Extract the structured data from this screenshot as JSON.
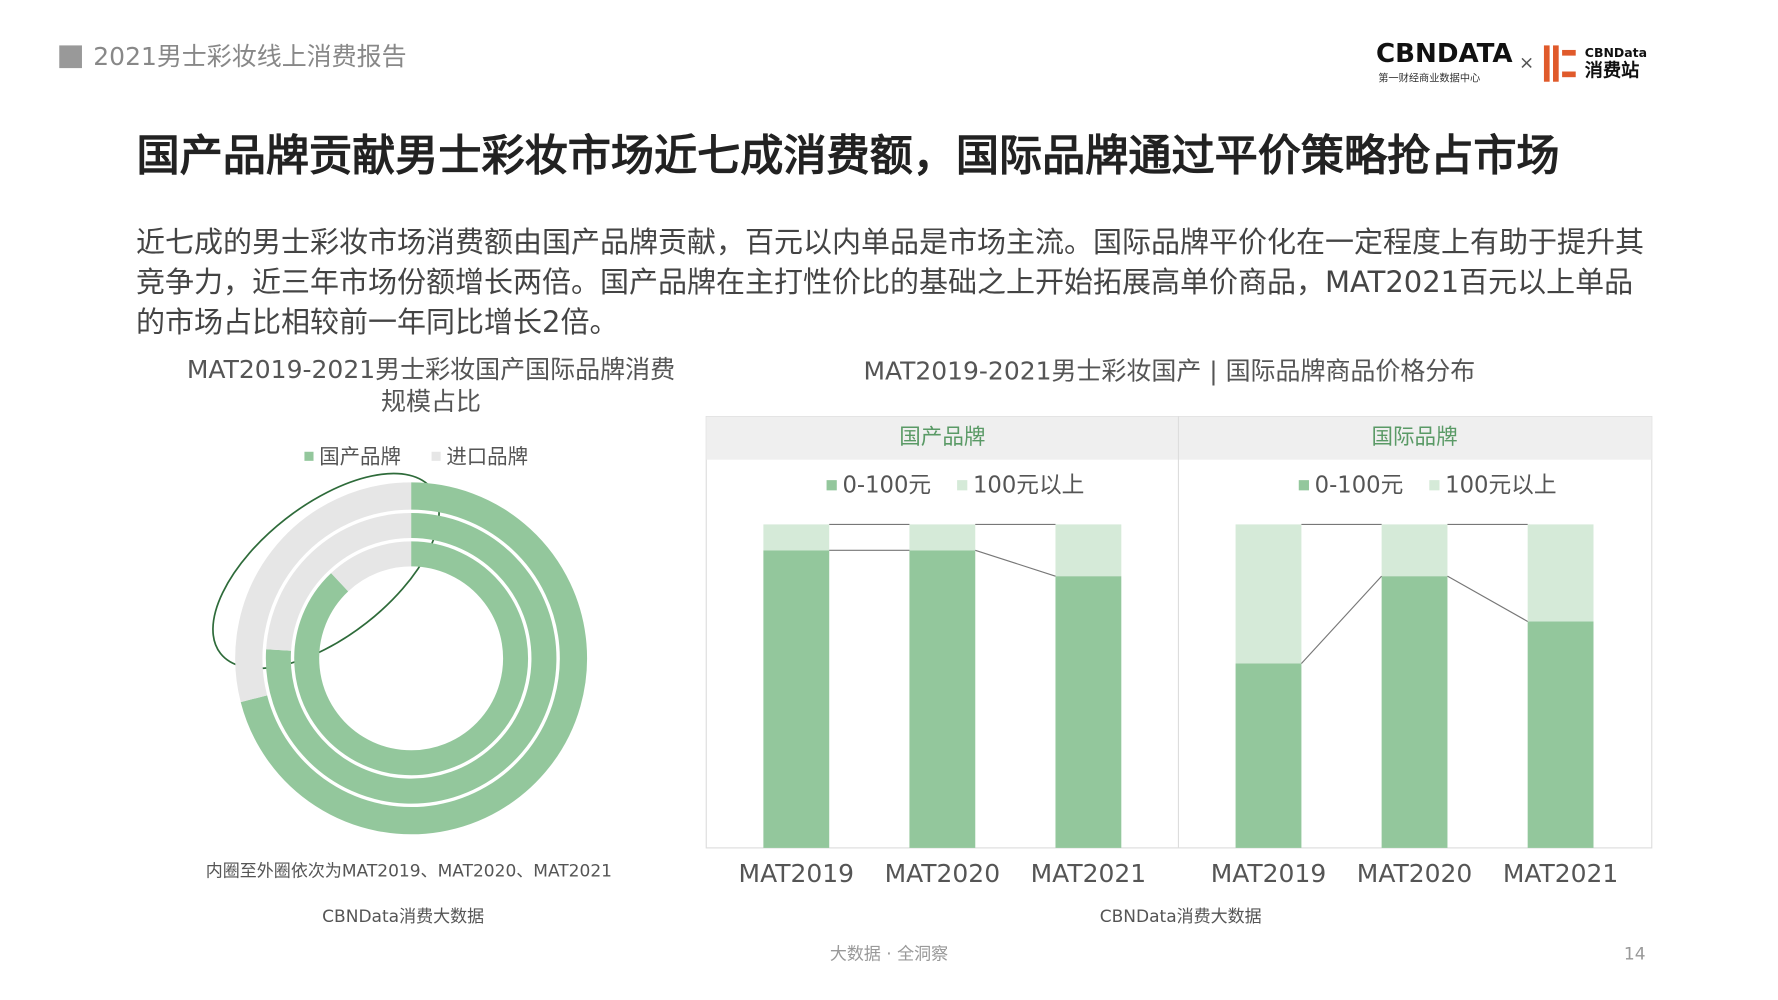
{
  "header": {
    "report": "2021男士彩妆线上消费报告",
    "logo_main": "CBNDATA",
    "logo_sub": "第一财经商业数据中心",
    "logo_x": "×",
    "logo2_top": "CBNData",
    "logo2_bottom": "消费站"
  },
  "title": "国产品牌贡献男士彩妆市场近七成消费额，国际品牌通过平价策略抢占市场",
  "paragraph": "近七成的男士彩妆市场消费额由国产品牌贡献，百元以内单品是市场主流。国际品牌平价化在一定程度上有助于提升其竞争力，近三年市场份额增长两倍。国产品牌在主打性价比的基础之上开始拓展高单价商品，MAT2021百元以上单品的市场占比相较前一年同比增长2倍。",
  "chart_data": [
    {
      "type": "donut",
      "title": "MAT2019-2021男士彩妆国产国际品牌消费规模占比",
      "series": [
        {
          "name": "国产品牌",
          "color": "#93c79c",
          "values": [
            88,
            76,
            71
          ]
        },
        {
          "name": "进口品牌",
          "color": "#e6e6e6",
          "values": [
            12,
            24,
            29
          ]
        }
      ],
      "note": "内圈至外圈依次为MAT2019、MAT2020、MAT2021",
      "source": "CBNData消费大数据"
    },
    {
      "type": "bar",
      "stacked": true,
      "title": "MAT2019-2021男士彩妆国产 | 国际品牌商品价格分布",
      "subtitle": "国产品牌",
      "categories": [
        "MAT2019",
        "MAT2020",
        "MAT2021"
      ],
      "series": [
        {
          "name": "0-100元",
          "color": "#93c79c",
          "values": [
            92,
            92,
            84
          ]
        },
        {
          "name": "100元以上",
          "color": "#d5ead8",
          "values": [
            8,
            8,
            16
          ]
        }
      ],
      "ylim": [
        0,
        100
      ],
      "source": "CBNData消费大数据"
    },
    {
      "type": "bar",
      "stacked": true,
      "subtitle": "国际品牌",
      "categories": [
        "MAT2019",
        "MAT2020",
        "MAT2021"
      ],
      "series": [
        {
          "name": "0-100元",
          "color": "#93c79c",
          "values": [
            57,
            84,
            70
          ]
        },
        {
          "name": "100元以上",
          "color": "#d5ead8",
          "values": [
            43,
            16,
            30
          ]
        }
      ],
      "ylim": [
        0,
        100
      ]
    }
  ],
  "footer": {
    "slogan": "大数据 · 全洞察",
    "page": "14"
  }
}
